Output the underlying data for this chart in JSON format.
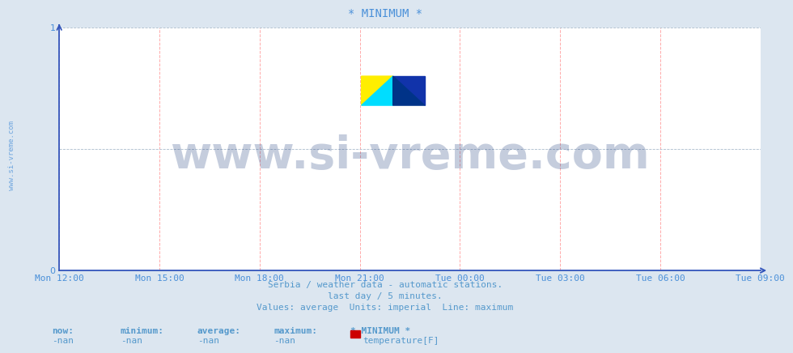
{
  "title": "* MINIMUM *",
  "title_color": "#4a90d9",
  "background_color": "#dce6f0",
  "plot_background_color": "#ffffff",
  "grid_color_v": "#ffaaaa",
  "grid_color_h": "#aabbcc",
  "axis_color": "#3355bb",
  "ylabel_left": "www.si-vreme.com",
  "x_tick_labels": [
    "Mon 12:00",
    "Mon 15:00",
    "Mon 18:00",
    "Mon 21:00",
    "Tue 00:00",
    "Tue 03:00",
    "Tue 06:00",
    "Tue 09:00"
  ],
  "x_tick_positions": [
    0.0,
    0.142857,
    0.285714,
    0.428571,
    0.571429,
    0.714286,
    0.857143,
    1.0
  ],
  "ylim": [
    0,
    1
  ],
  "yticks": [
    0,
    1
  ],
  "subtitle_lines": [
    "Serbia / weather data - automatic stations.",
    "last day / 5 minutes.",
    "Values: average  Units: imperial  Line: maximum"
  ],
  "subtitle_color": "#5599cc",
  "legend_labels": [
    "now:",
    "minimum:",
    "average:",
    "maximum:",
    "* MINIMUM *"
  ],
  "legend_values": [
    "-nan",
    "-nan",
    "-nan",
    "-nan"
  ],
  "legend_series_label": "temperature[F]",
  "legend_series_color": "#cc0000",
  "watermark_text": "www.si-vreme.com",
  "watermark_color": "#1a3a7a",
  "watermark_alpha": 0.25,
  "tick_label_color": "#4a90d9",
  "tick_label_fontsize": 8,
  "subtitle_fontsize": 8,
  "legend_fontsize": 8,
  "title_fontsize": 10,
  "logo_yellow": "#ffee00",
  "logo_cyan": "#00ddff",
  "logo_darkblue": "#1133aa",
  "logo_blue": "#003388"
}
